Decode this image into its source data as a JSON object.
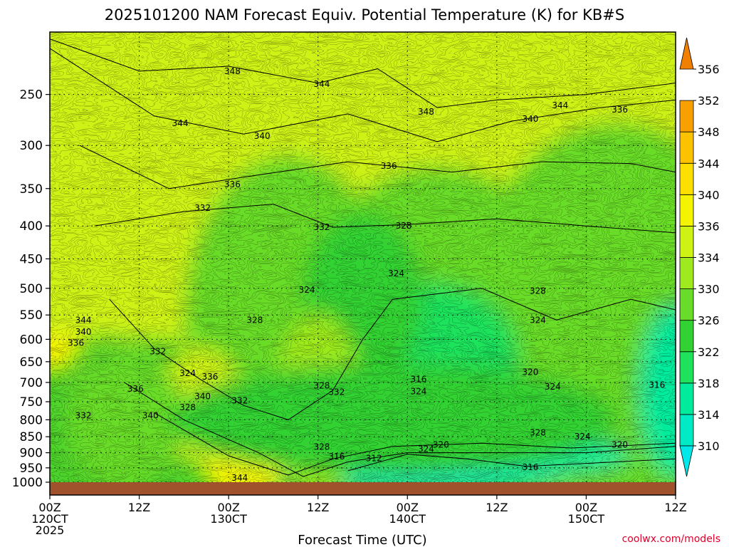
{
  "chart_data": {
    "type": "heatmap",
    "title": "2025101200 NAM Forecast Equiv. Potential Temperature (K) for KB#S",
    "xlabel": "Forecast Time (UTC)",
    "ylabel": "",
    "x_ticks": [
      {
        "hour": 0,
        "lines": [
          "00Z",
          "120CT",
          "2025"
        ]
      },
      {
        "hour": 12,
        "lines": [
          "12Z"
        ]
      },
      {
        "hour": 24,
        "lines": [
          "00Z",
          "130CT"
        ]
      },
      {
        "hour": 36,
        "lines": [
          "12Z"
        ]
      },
      {
        "hour": 48,
        "lines": [
          "00Z",
          "140CT"
        ]
      },
      {
        "hour": 60,
        "lines": [
          "12Z"
        ]
      },
      {
        "hour": 72,
        "lines": [
          "00Z",
          "150CT"
        ]
      },
      {
        "hour": 84,
        "lines": [
          "12Z"
        ]
      }
    ],
    "xlim": [
      0,
      84
    ],
    "y_scale": "log",
    "y_inverted": true,
    "y_ticks": [
      250,
      300,
      350,
      400,
      450,
      500,
      550,
      600,
      650,
      700,
      750,
      800,
      850,
      900,
      950,
      1000
    ],
    "ylim": [
      1000,
      200
    ],
    "grid": true,
    "colorbar": {
      "levels": [
        310,
        314,
        318,
        322,
        326,
        330,
        334,
        336,
        340,
        344,
        348,
        352,
        356
      ],
      "colors": [
        "#00e8e8",
        "#00eac6",
        "#00ec9c",
        "#1ee25c",
        "#32d232",
        "#68dc28",
        "#9eea1e",
        "#cef214",
        "#f4f400",
        "#fee000",
        "#fcc200",
        "#f8a000",
        "#f28000"
      ],
      "units": "K"
    },
    "contour_labels": [
      {
        "t": 24.5,
        "p": 230,
        "v": "348"
      },
      {
        "t": 36.5,
        "p": 241,
        "v": "344"
      },
      {
        "t": 17.5,
        "p": 277,
        "v": "344"
      },
      {
        "t": 28.5,
        "p": 290,
        "v": "340"
      },
      {
        "t": 50.5,
        "p": 266,
        "v": "348"
      },
      {
        "t": 68.5,
        "p": 260,
        "v": "344"
      },
      {
        "t": 76.5,
        "p": 264,
        "v": "336"
      },
      {
        "t": 64.5,
        "p": 273,
        "v": "340"
      },
      {
        "t": 45.5,
        "p": 323,
        "v": "336"
      },
      {
        "t": 24.5,
        "p": 345,
        "v": "336"
      },
      {
        "t": 20.5,
        "p": 375,
        "v": "332"
      },
      {
        "t": 36.5,
        "p": 402,
        "v": "332"
      },
      {
        "t": 47.5,
        "p": 400,
        "v": "328"
      },
      {
        "t": 46.5,
        "p": 474,
        "v": "324"
      },
      {
        "t": 34.5,
        "p": 503,
        "v": "324"
      },
      {
        "t": 27.5,
        "p": 560,
        "v": "328"
      },
      {
        "t": 65.5,
        "p": 505,
        "v": "328"
      },
      {
        "t": 65.5,
        "p": 560,
        "v": "324"
      },
      {
        "t": 4.5,
        "p": 560,
        "v": "344"
      },
      {
        "t": 4.5,
        "p": 584,
        "v": "340"
      },
      {
        "t": 3.5,
        "p": 608,
        "v": "336"
      },
      {
        "t": 14.5,
        "p": 627,
        "v": "332"
      },
      {
        "t": 18.5,
        "p": 677,
        "v": "324"
      },
      {
        "t": 21.5,
        "p": 686,
        "v": "336"
      },
      {
        "t": 11.5,
        "p": 716,
        "v": "336"
      },
      {
        "t": 20.5,
        "p": 736,
        "v": "340"
      },
      {
        "t": 25.5,
        "p": 747,
        "v": "332"
      },
      {
        "t": 18.5,
        "p": 765,
        "v": "328"
      },
      {
        "t": 13.5,
        "p": 788,
        "v": "340"
      },
      {
        "t": 4.5,
        "p": 788,
        "v": "332"
      },
      {
        "t": 36.5,
        "p": 708,
        "v": "328"
      },
      {
        "t": 38.5,
        "p": 725,
        "v": "332"
      },
      {
        "t": 49.5,
        "p": 692,
        "v": "316"
      },
      {
        "t": 49.5,
        "p": 723,
        "v": "324"
      },
      {
        "t": 64.5,
        "p": 675,
        "v": "320"
      },
      {
        "t": 67.5,
        "p": 711,
        "v": "324"
      },
      {
        "t": 81.5,
        "p": 706,
        "v": "316"
      },
      {
        "t": 36.5,
        "p": 882,
        "v": "328"
      },
      {
        "t": 38.5,
        "p": 912,
        "v": "316"
      },
      {
        "t": 43.5,
        "p": 918,
        "v": "312"
      },
      {
        "t": 50.5,
        "p": 888,
        "v": "324"
      },
      {
        "t": 52.5,
        "p": 875,
        "v": "320"
      },
      {
        "t": 65.5,
        "p": 838,
        "v": "328"
      },
      {
        "t": 71.5,
        "p": 850,
        "v": "324"
      },
      {
        "t": 76.5,
        "p": 875,
        "v": "320"
      },
      {
        "t": 64.5,
        "p": 948,
        "v": "316"
      },
      {
        "t": 25.5,
        "p": 985,
        "v": "344"
      }
    ]
  },
  "credit": "coolwx.com/models"
}
